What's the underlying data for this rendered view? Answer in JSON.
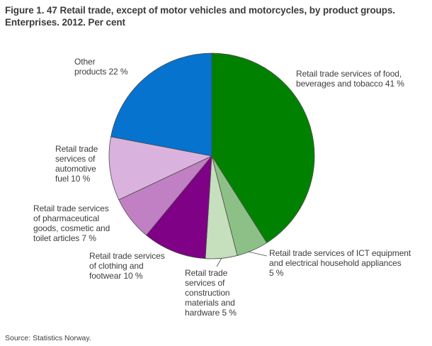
{
  "title": "Figure 1. 47 Retail trade, except of motor vehicles and motorcycles, by product groups. Enterprises. 2012. Per cent",
  "source": "Source: Statistics Norway.",
  "chart_data": {
    "type": "pie",
    "title": "Figure 1. 47 Retail trade, except of motor vehicles and motorcycles, by product groups. Enterprises. 2012. Per cent",
    "unit": "per cent",
    "start_angle_deg": 0,
    "direction": "clockwise",
    "stroke_color": "#4a4a4a",
    "slices": [
      {
        "label": "Retail trade services of food, beverages and tobacco",
        "value": 41,
        "color": "#008200",
        "display": "Retail trade services of food,\nbeverages and tobacco 41 %"
      },
      {
        "label": "Retail trade services of ICT equipment and electrical household appliances",
        "value": 5,
        "color": "#8dc087",
        "display": "Retail trade services of ICT equipment\nand electrical household appliances\n5 %"
      },
      {
        "label": "Retail trade services of construction materials and hardware",
        "value": 5,
        "color": "#c6dfbc",
        "display": "Retail trade\nservices of\nconstruction\nmaterials and\nhardware 5 %"
      },
      {
        "label": "Retail trade services of clothing and footwear",
        "value": 10,
        "color": "#7e0186",
        "display": "Retail trade services\nof clothing and\nfootwear 10 %"
      },
      {
        "label": "Retail trade services of pharmaceutical goods, cosmetic and toilet articles",
        "value": 7,
        "color": "#c17fc4",
        "display": "Retail trade services\nof pharmaceutical\ngoods, cosmetic and\ntoilet articles 7 %"
      },
      {
        "label": "Retail trade services of automotive fuel",
        "value": 10,
        "color": "#d9b3de",
        "display": "Retail trade\nservices of\nautomotive\nfuel 10 %"
      },
      {
        "label": "Other products",
        "value": 22,
        "color": "#0673cf",
        "display": "Other\nproducts 22 %"
      }
    ]
  }
}
